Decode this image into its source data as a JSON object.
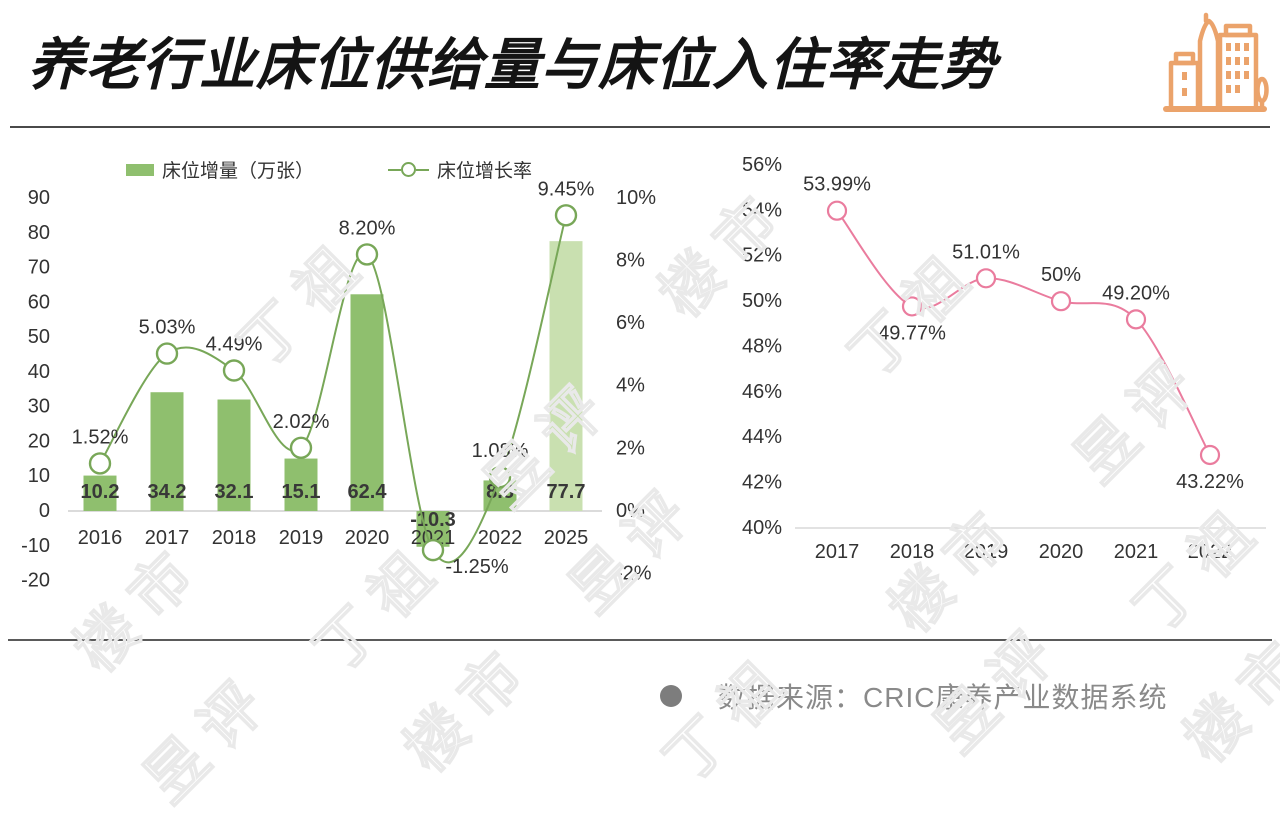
{
  "header": {
    "title": "养老行业床位供给量与床位入住率走势",
    "icon": "city-buildings-icon",
    "icon_color": "#EBA36B"
  },
  "legend": {
    "bar_label": "床位增量（万张）",
    "line_label": "床位增长率"
  },
  "chart_data": [
    {
      "type": "bar",
      "name": "床位供给量",
      "categories": [
        "2016",
        "2017",
        "2018",
        "2019",
        "2020",
        "2021",
        "2022",
        "2025"
      ],
      "series": [
        {
          "name": "床位增量（万张）",
          "type": "bar",
          "values": [
            10.2,
            34.2,
            32.1,
            15.1,
            62.4,
            -10.3,
            8.8,
            77.7
          ],
          "value_labels": [
            "10.2",
            "34.2",
            "32.1",
            "15.1",
            "62.4",
            "-10.3",
            "8.8",
            "77.7"
          ],
          "color": "#8FBF6E",
          "forecast_color": "#C9E0B0",
          "forecast_index": 7
        },
        {
          "name": "床位增长率",
          "type": "line",
          "values": [
            1.52,
            5.03,
            4.49,
            2.02,
            8.2,
            -1.25,
            1.08,
            9.45
          ],
          "value_labels": [
            "1.52%",
            "5.03%",
            "4.49%",
            "2.02%",
            "8.20%",
            "-1.25%",
            "1.08%",
            "9.45%"
          ],
          "color": "#78A758"
        }
      ],
      "left_axis": {
        "min": -20,
        "max": 90,
        "step": 10,
        "ticks": [
          "90",
          "80",
          "70",
          "60",
          "50",
          "40",
          "30",
          "20",
          "10",
          "0",
          "-10",
          "-20"
        ]
      },
      "right_axis": {
        "min": -2,
        "max": 10,
        "step": 2,
        "ticks": [
          "10%",
          "8%",
          "6%",
          "4%",
          "2%",
          "0%",
          "-2%"
        ]
      },
      "grid": "off",
      "legend_position": "top"
    },
    {
      "type": "line",
      "name": "床位入住率",
      "categories": [
        "2017",
        "2018",
        "2019",
        "2020",
        "2021",
        "2022"
      ],
      "values": [
        53.99,
        49.77,
        51.01,
        50,
        49.2,
        43.22
      ],
      "value_labels": [
        "53.99%",
        "49.77%",
        "51.01%",
        "50%",
        "49.20%",
        "43.22%"
      ],
      "label_side": [
        "above",
        "below",
        "above",
        "above",
        "above",
        "below"
      ],
      "color": "#EA7C9E",
      "y_axis": {
        "min": 40,
        "max": 56,
        "step": 2,
        "ticks": [
          "56%",
          "54%",
          "52%",
          "50%",
          "48%",
          "46%",
          "44%",
          "42%",
          "40%"
        ]
      },
      "grid": "off"
    }
  ],
  "footer": {
    "source_label": "数据来源：CRIC康养产业数据系统"
  },
  "watermark": {
    "text": "丁祖昱评楼市"
  },
  "colors": {
    "bar_green": "#8FBF6E",
    "bar_green_light": "#C9E0B0",
    "line_green": "#78A758",
    "line_pink": "#EA7C9E",
    "text_dark": "#333333",
    "text_gray": "#8a8a8a",
    "icon_orange": "#EBA36B"
  }
}
